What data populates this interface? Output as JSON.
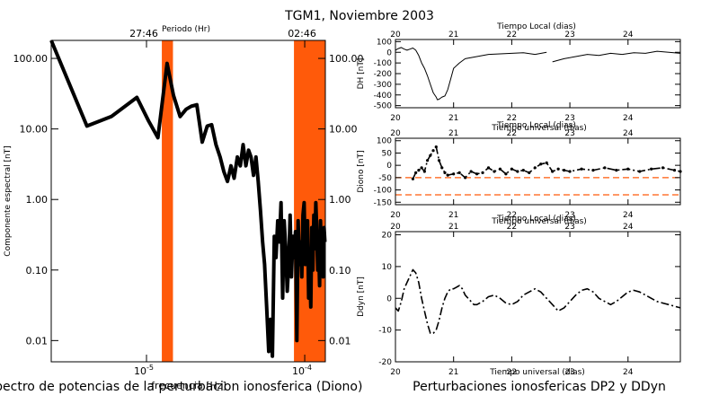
{
  "title": "TGM1, Noviembre 2003",
  "colors": {
    "band": "#ff5a0a",
    "line": "#000000",
    "dash": "#ff5a0a"
  },
  "chart_data": [
    {
      "type": "line",
      "scale": "log-log",
      "top_axis_label": "Periodo (Hr)",
      "top_ticks": [
        {
          "label": "27:46",
          "x": 1e-05
        },
        {
          "label": "02:46",
          "x": 0.0001
        }
      ],
      "bottom_label": "frecuencia [Hz]",
      "ylabel": "Componente espectral [nT]",
      "caption": "Espectro de potencias de la perturbacion ionosferica (Diono)",
      "xlim": [
        2.5e-06,
        0.000135
      ],
      "ylim": [
        0.005,
        180
      ],
      "x_ticks": [
        {
          "label": "10",
          "sup": "-5",
          "x": 1e-05
        },
        {
          "label": "10",
          "sup": "-4",
          "x": 0.0001
        }
      ],
      "y_ticks": [
        "100.00",
        "10.00",
        "1.00",
        "0.10",
        "0.01"
      ],
      "y_tick_values": [
        100,
        10,
        1,
        0.1,
        0.01
      ],
      "bands": [
        [
          1.25e-05,
          1.47e-05
        ],
        [
          8.55e-05,
          0.000135
        ]
      ],
      "series": [
        {
          "x": [
            2.5e-06,
            4.2e-06,
            6e-06,
            8.7e-06,
            1.03e-05,
            1.18e-05,
            1.35e-05,
            1.48e-05,
            1.63e-05,
            1.78e-05,
            1.92e-05,
            2.08e-05,
            2.25e-05,
            2.42e-05,
            2.58e-05,
            2.75e-05,
            2.92e-05,
            3.08e-05,
            3.25e-05,
            3.42e-05,
            3.58e-05,
            3.75e-05,
            3.92e-05,
            4.08e-05,
            4.25e-05,
            4.42e-05,
            4.58e-05,
            4.75e-05,
            4.92e-05,
            5.08e-05,
            5.25e-05,
            5.42e-05,
            5.58e-05,
            5.75e-05,
            5.92e-05,
            6.08e-05,
            6.25e-05,
            6.42e-05,
            6.58e-05,
            6.75e-05,
            6.92e-05,
            7.08e-05,
            7.25e-05,
            7.42e-05,
            7.58e-05,
            7.75e-05,
            7.92e-05,
            8.08e-05,
            8.25e-05,
            8.42e-05,
            8.58e-05,
            8.75e-05,
            8.92e-05,
            9.08e-05,
            9.25e-05,
            9.42e-05,
            9.58e-05,
            9.75e-05,
            9.92e-05,
            0.0001008,
            0.0001025,
            0.0001042,
            0.0001058,
            0.0001075,
            0.0001092,
            0.0001108,
            0.0001125,
            0.0001142,
            0.0001158,
            0.0001175,
            0.0001192,
            0.0001208,
            0.0001225,
            0.0001242,
            0.0001258,
            0.0001275,
            0.0001292,
            0.0001308,
            0.0001325,
            0.0001342
          ],
          "y": [
            180,
            11,
            15,
            28,
            13,
            7.5,
            85,
            30,
            15,
            19,
            21,
            22,
            6.5,
            11,
            11.5,
            6,
            4,
            2.5,
            1.8,
            3,
            2,
            4,
            3,
            6,
            3,
            5,
            4,
            2.2,
            4,
            1.8,
            0.7,
            0.25,
            0.12,
            0.03,
            0.007,
            0.02,
            0.006,
            0.3,
            0.15,
            0.5,
            0.25,
            0.9,
            0.04,
            0.5,
            0.2,
            0.05,
            0.12,
            0.6,
            0.08,
            0.3,
            0.15,
            0.35,
            0.01,
            0.5,
            0.12,
            0.25,
            0.08,
            0.6,
            0.9,
            0.12,
            0.35,
            0.5,
            0.04,
            0.12,
            0.03,
            0.4,
            0.1,
            0.6,
            0.2,
            0.9,
            0.35,
            0.1,
            0.2,
            0.06,
            0.5,
            0.15,
            0.3,
            0.08,
            0.4,
            0.25
          ]
        }
      ]
    },
    {
      "type": "line",
      "ylabel": "DH [nT]",
      "top_axis_label": "Tiempo Local (dias)",
      "xlim": [
        20,
        24.9
      ],
      "ylim": [
        -520,
        120
      ],
      "x_ticks": [
        20,
        21,
        22,
        23,
        24
      ],
      "top_ticks": [
        "20",
        "21",
        "22",
        "23",
        "24"
      ],
      "y_ticks": [
        "100",
        "0",
        "-100",
        "-200",
        "-300",
        "-400",
        "-500"
      ],
      "y_tick_values": [
        100,
        0,
        -100,
        -200,
        -300,
        -400,
        -500
      ],
      "series": [
        {
          "x": [
            20.0,
            20.05,
            20.1,
            20.15,
            20.2,
            20.25,
            20.3,
            20.35,
            20.4,
            20.45,
            20.5,
            20.55,
            20.6,
            20.65,
            20.7,
            20.72,
            20.75,
            20.8,
            20.85,
            20.9,
            20.95,
            21.0,
            21.1,
            21.2,
            21.4,
            21.6,
            21.8,
            22.0,
            22.2,
            22.4,
            22.6
          ],
          "y": [
            20,
            35,
            45,
            30,
            20,
            30,
            40,
            20,
            -30,
            -100,
            -150,
            -220,
            -300,
            -380,
            -420,
            -445,
            -440,
            -420,
            -410,
            -350,
            -250,
            -150,
            -100,
            -60,
            -40,
            -20,
            -15,
            -10,
            -5,
            -20,
            0
          ]
        },
        {
          "x": [
            22.7,
            22.9,
            23.1,
            23.3,
            23.5,
            23.7,
            23.9,
            24.1,
            24.3,
            24.5,
            24.7,
            24.9
          ],
          "y": [
            -90,
            -60,
            -40,
            -20,
            -30,
            -10,
            -20,
            -5,
            -10,
            10,
            0,
            -10
          ]
        }
      ]
    },
    {
      "type": "line",
      "ylabel": "Diono [nT]",
      "top_axis_label": "Tiempo Local (dias)",
      "top_overlap_label": "Tiempo universal (dias)",
      "xlim": [
        20,
        24.9
      ],
      "ylim": [
        -160,
        110
      ],
      "x_ticks": [
        20,
        21,
        22,
        23,
        24
      ],
      "top_ticks": [
        "20",
        "21",
        "22",
        "23",
        "24"
      ],
      "y_ticks": [
        "100",
        "50",
        "0",
        "-50",
        "-100",
        "-150"
      ],
      "y_tick_values": [
        100,
        50,
        0,
        -50,
        -100,
        -150
      ],
      "thresholds": [
        -50,
        -120
      ],
      "series": [
        {
          "x": [
            20.3,
            20.35,
            20.4,
            20.45,
            20.5,
            20.55,
            20.6,
            20.65,
            20.7,
            20.75,
            20.8,
            20.85,
            20.9,
            21.0,
            21.1,
            21.2,
            21.3,
            21.4,
            21.5,
            21.6,
            21.7,
            21.8,
            21.9,
            22.0,
            22.1,
            22.2,
            22.3,
            22.4,
            22.5,
            22.6,
            22.7,
            22.8,
            22.9,
            23.0,
            23.2,
            23.4,
            23.6,
            23.8,
            24.0,
            24.2,
            24.4,
            24.6,
            24.8,
            24.9
          ],
          "y": [
            -55,
            -30,
            -20,
            -10,
            -25,
            20,
            40,
            60,
            75,
            20,
            -10,
            -30,
            -40,
            -35,
            -30,
            -50,
            -25,
            -35,
            -30,
            -10,
            -25,
            -15,
            -35,
            -15,
            -25,
            -20,
            -30,
            -10,
            5,
            10,
            -25,
            -15,
            -20,
            -25,
            -15,
            -20,
            -10,
            -20,
            -15,
            -25,
            -15,
            -10,
            -20,
            -25
          ]
        }
      ]
    },
    {
      "type": "line",
      "ylabel": "Ddyn [nT]",
      "top_axis_label": "Tiempo Local (dias)",
      "top_overlap_label": "Tiempo universal (dias)",
      "bottom_label": "Tiempo universal (dias)",
      "caption": "Perturbaciones ionosfericas DP2 y DDyn",
      "xlim": [
        20,
        24.9
      ],
      "ylim": [
        -20,
        21
      ],
      "x_ticks": [
        20,
        21,
        22,
        23,
        24
      ],
      "top_ticks": [
        "20",
        "21",
        "22",
        "23",
        "24"
      ],
      "y_ticks": [
        "20",
        "10",
        "0",
        "-10",
        "-20"
      ],
      "y_tick_values": [
        20,
        10,
        0,
        -10,
        -20
      ],
      "series": [
        {
          "x": [
            20.0,
            20.05,
            20.1,
            20.15,
            20.2,
            20.25,
            20.3,
            20.35,
            20.4,
            20.45,
            20.5,
            20.55,
            20.6,
            20.65,
            20.7,
            20.75,
            20.8,
            20.85,
            20.9,
            20.95,
            21.0,
            21.05,
            21.1,
            21.15,
            21.2,
            21.25,
            21.3,
            21.35,
            21.4,
            21.5,
            21.6,
            21.7,
            21.8,
            21.9,
            22.0,
            22.1,
            22.2,
            22.3,
            22.4,
            22.5,
            22.6,
            22.7,
            22.8,
            22.9,
            23.0,
            23.1,
            23.2,
            23.3,
            23.4,
            23.5,
            23.6,
            23.7,
            23.8,
            23.9,
            24.0,
            24.1,
            24.2,
            24.3,
            24.4,
            24.5,
            24.6,
            24.7,
            24.8,
            24.9
          ],
          "y": [
            -3,
            -4,
            -1,
            3,
            5,
            7,
            9,
            8,
            5,
            0,
            -4,
            -8,
            -11,
            -11,
            -10,
            -7,
            -3,
            0,
            2,
            3,
            3,
            3.5,
            4,
            3,
            1,
            0,
            -1,
            -2,
            -2,
            -1,
            0.5,
            1,
            0,
            -1.5,
            -2,
            -1,
            1,
            2,
            3,
            2,
            0,
            -2,
            -4,
            -3,
            -1,
            1,
            2.5,
            3,
            2,
            0,
            -1,
            -2,
            -1,
            0.5,
            2,
            2.5,
            2,
            1,
            0,
            -1,
            -1.5,
            -2,
            -2.5,
            -3
          ]
        }
      ]
    }
  ]
}
